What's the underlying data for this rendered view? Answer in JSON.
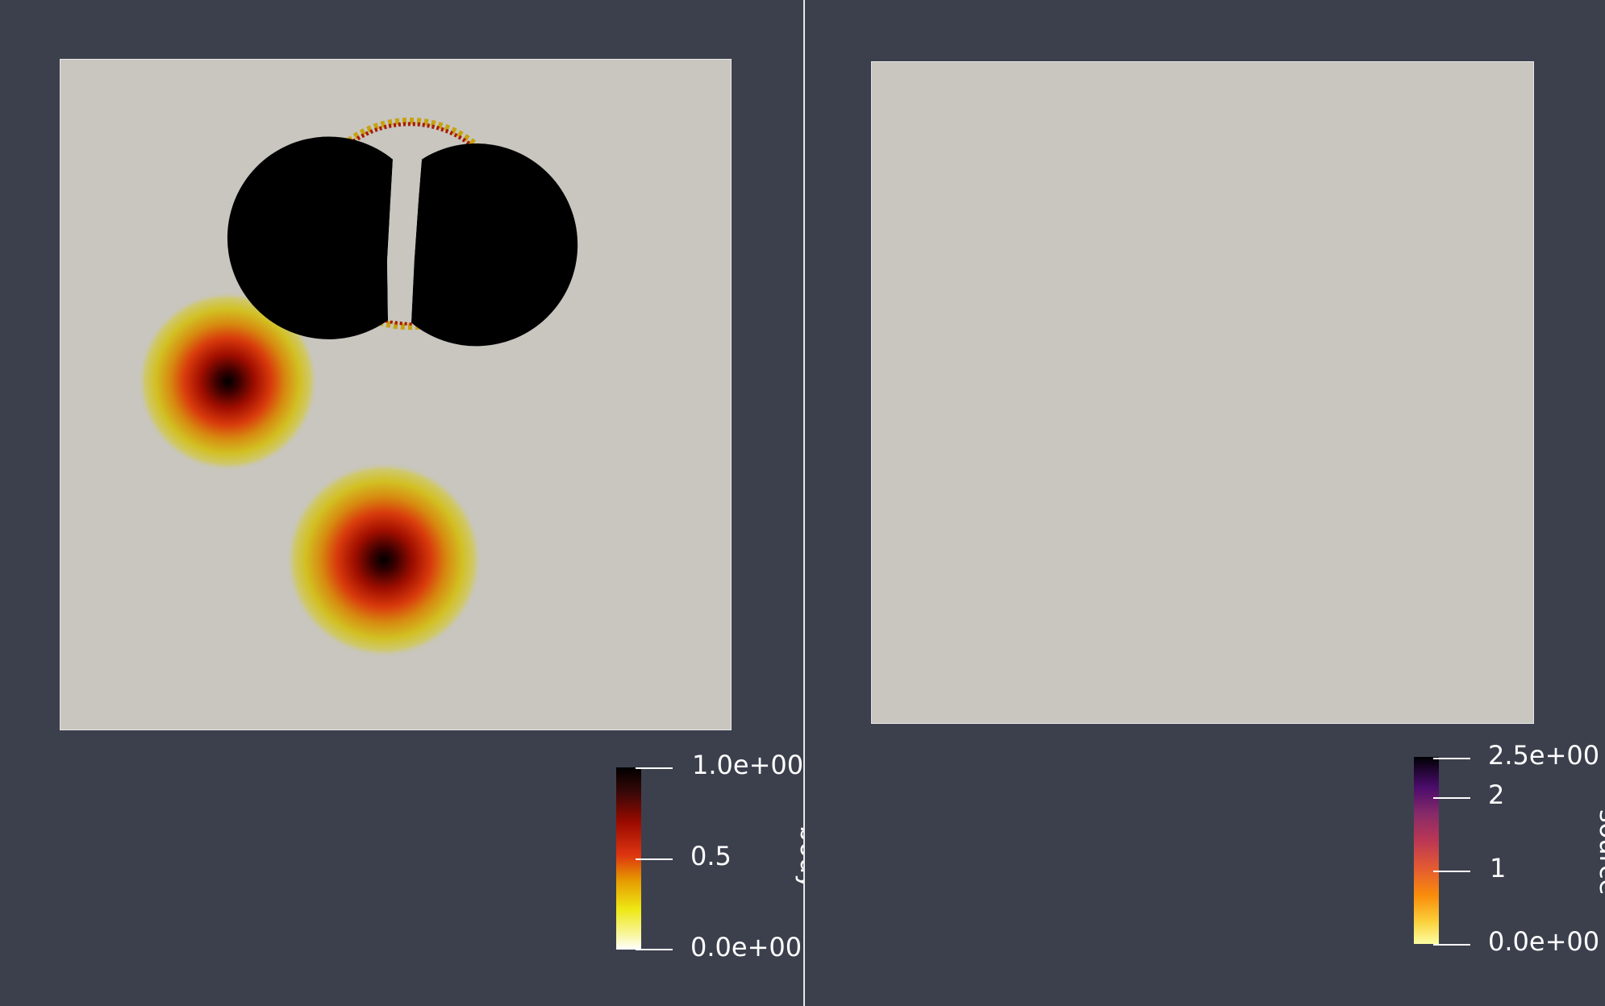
{
  "left_view": {
    "colorbar": {
      "field_name": "body",
      "colormap": "black-body",
      "range": [
        0,
        1
      ],
      "tick_labels": [
        "1.0e+00",
        "0.5",
        "0.0e+00"
      ]
    },
    "field": {
      "disk_value": 1.0,
      "blob_peak_value": 1.0,
      "background_value": 0.0
    }
  },
  "right_view": {
    "colorbar": {
      "field_name": "source",
      "colormap": "inferno",
      "range": [
        0,
        2.5
      ],
      "tick_labels": [
        "2.5e+00",
        "2",
        "1",
        "0.0e+00"
      ]
    },
    "field": {
      "value": 0.0
    }
  },
  "colors": {
    "background": "#3c404d",
    "domain_fill": "#c8c6bf",
    "divider": "#e8e8e8"
  }
}
